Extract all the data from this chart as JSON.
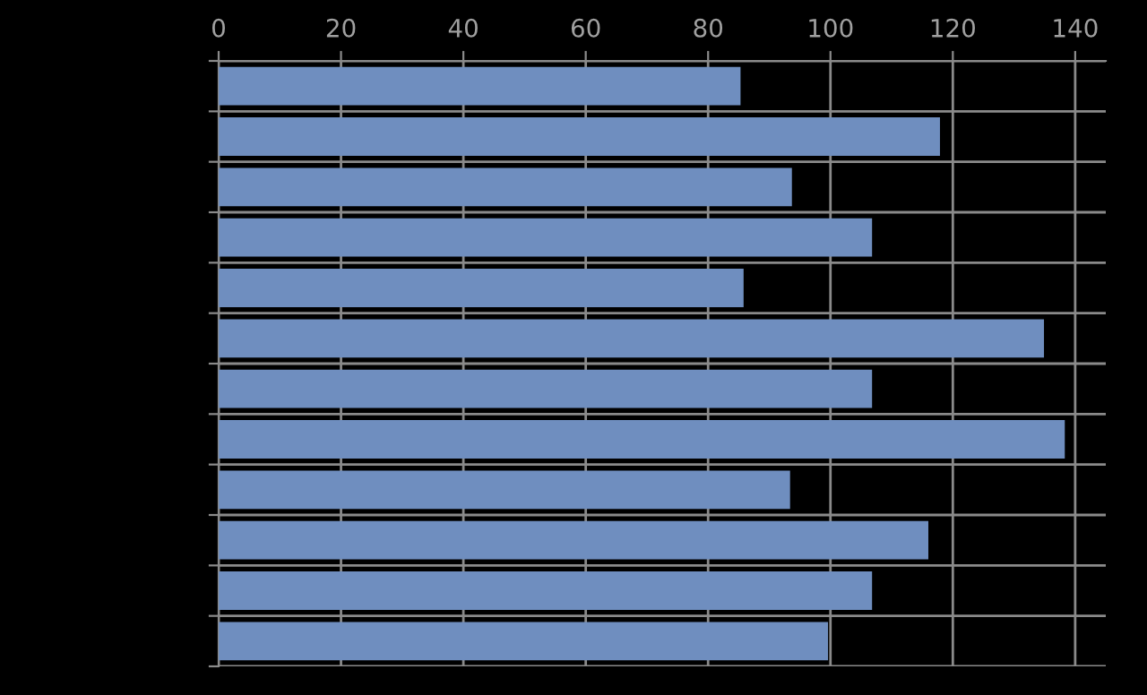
{
  "chart_data": {
    "type": "bar",
    "orientation": "horizontal",
    "categories": [
      null,
      null,
      null,
      null,
      null,
      null,
      null,
      null,
      null,
      null,
      null,
      null
    ],
    "values": [
      85.3,
      117.9,
      93.7,
      106.8,
      85.8,
      134.9,
      106.8,
      138.3,
      93.4,
      116,
      106.8,
      99.6
    ],
    "color": "#6f8ebf",
    "xlim": [
      0,
      145
    ],
    "xticks": [
      0,
      20,
      40,
      60,
      80,
      100,
      120,
      140
    ],
    "grid": true
  }
}
